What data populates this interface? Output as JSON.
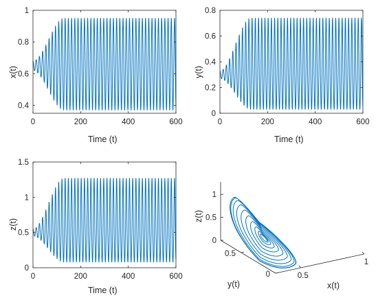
{
  "chart_data": [
    {
      "id": "x",
      "type": "line",
      "xlabel": "Time (t)",
      "ylabel": "x(t)",
      "xlim": [
        0,
        600
      ],
      "ylim": [
        0.35,
        1.0
      ],
      "xticks": [
        0,
        200,
        400,
        600
      ],
      "yticks": [
        0.4,
        0.6,
        0.8,
        1
      ],
      "ytick_labels": [
        "0.4",
        "0.6",
        "0.8",
        "1"
      ],
      "series": [
        {
          "color": "#0072bd",
          "equilibrium": 0.65,
          "initial_amplitude": 0.03,
          "limit_min": 0.37,
          "limit_max": 0.95,
          "saturation_time": 130,
          "period": 13.5
        }
      ]
    },
    {
      "id": "y",
      "type": "line",
      "xlabel": "Time (t)",
      "ylabel": "y(t)",
      "xlim": [
        0,
        600
      ],
      "ylim": [
        0,
        0.8
      ],
      "xticks": [
        0,
        200,
        400,
        600
      ],
      "yticks": [
        0,
        0.2,
        0.4,
        0.6,
        0.8
      ],
      "ytick_labels": [
        "0",
        "0.2",
        "0.4",
        "0.6",
        "0.8"
      ],
      "series": [
        {
          "color": "#0072bd",
          "equilibrium": 0.3,
          "initial_amplitude": 0.03,
          "limit_min": 0.03,
          "limit_max": 0.74,
          "saturation_time": 130,
          "period": 13.5
        }
      ]
    },
    {
      "id": "z",
      "type": "line",
      "xlabel": "Time (t)",
      "ylabel": "z(t)",
      "xlim": [
        0,
        600
      ],
      "ylim": [
        0,
        1.5
      ],
      "xticks": [
        0,
        200,
        400,
        600
      ],
      "yticks": [
        0,
        0.5,
        1,
        1.5
      ],
      "ytick_labels": [
        "0",
        "0.5",
        "1",
        "1.5"
      ],
      "series": [
        {
          "color": "#0072bd",
          "equilibrium": 0.5,
          "initial_amplitude": 0.05,
          "limit_min": 0.08,
          "limit_max": 1.27,
          "saturation_time": 130,
          "period": 13.5
        }
      ]
    },
    {
      "id": "phase",
      "type": "line3d",
      "xlabel": "x(t)",
      "ylabel": "y(t)",
      "zlabel": "z(t)",
      "xticks": [
        0.5,
        1
      ],
      "yticks": [
        0,
        0.5
      ],
      "zticks": [
        0,
        0.5,
        1
      ],
      "xtick_labels": [
        "0.5",
        "1"
      ],
      "ytick_labels": [
        "0",
        "0.5"
      ],
      "ztick_labels": [
        "0",
        "0.5",
        "1"
      ],
      "xlim": [
        0.3,
        1.0
      ],
      "ylim": [
        0,
        0.8
      ],
      "zlim": [
        0,
        1.27
      ],
      "series": [
        {
          "color": "#0072bd",
          "center": [
            0.65,
            0.3,
            0.5
          ],
          "limit_cycle": {
            "x": [
              0.37,
              0.95
            ],
            "y": [
              0.03,
              0.74
            ],
            "z": [
              0.08,
              1.27
            ]
          }
        }
      ]
    }
  ]
}
